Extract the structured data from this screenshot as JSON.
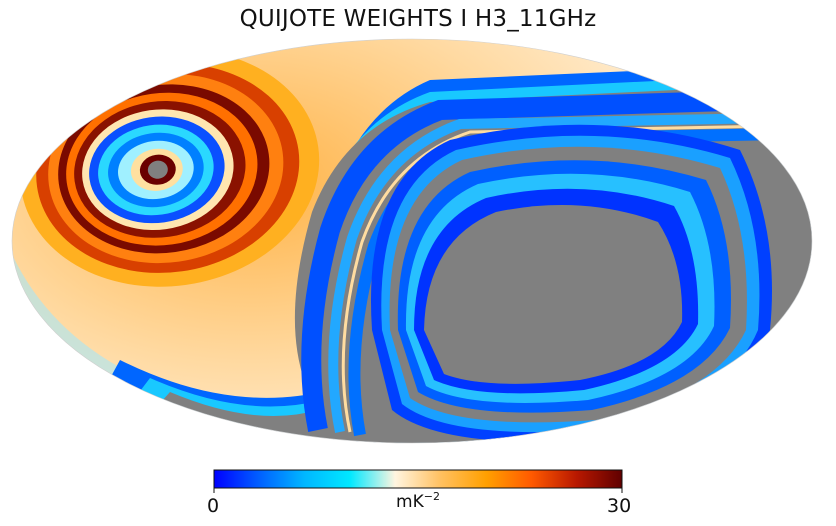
{
  "title": "QUIJOTE WEIGHTS I H3_11GHz",
  "colorbar": {
    "min_label": "0",
    "max_label": "30",
    "unit_base": "mK",
    "unit_exp": "−2",
    "colors": [
      "#0000ff",
      "#0060ff",
      "#00b7ff",
      "#00e8ff",
      "#fff5e0",
      "#ffc060",
      "#ffa000",
      "#ff5a00",
      "#b81800",
      "#600000"
    ]
  },
  "chart_data": {
    "type": "heatmap",
    "projection": "mollweide",
    "title": "QUIJOTE WEIGHTS I H3_11GHz",
    "colormap": "planck-style blue–cream–orange–dark red",
    "value_range": [
      0,
      30
    ],
    "unit": "mK^-2",
    "masked_color": "#808080",
    "features": {
      "left_concentric_rings_peak": 30,
      "background_weight_level": 12,
      "masked_region": "large gray area on right half and lower band"
    }
  }
}
